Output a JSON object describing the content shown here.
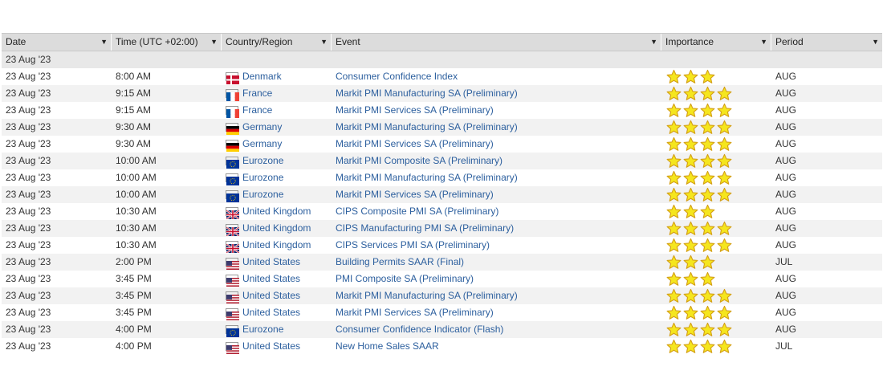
{
  "columns": [
    "Date",
    "Time (UTC +02:00)",
    "Country/Region",
    "Event",
    "Importance",
    "Period"
  ],
  "group_label": "23 Aug '23",
  "rows": [
    {
      "date": "23 Aug '23",
      "time": "8:00 AM",
      "country": "Denmark",
      "flag": "dk",
      "event": "Consumer Confidence Index",
      "stars": 3,
      "period": "AUG"
    },
    {
      "date": "23 Aug '23",
      "time": "9:15 AM",
      "country": "France",
      "flag": "fr",
      "event": "Markit PMI Manufacturing SA (Preliminary)",
      "stars": 4,
      "period": "AUG"
    },
    {
      "date": "23 Aug '23",
      "time": "9:15 AM",
      "country": "France",
      "flag": "fr",
      "event": "Markit PMI Services SA (Preliminary)",
      "stars": 4,
      "period": "AUG"
    },
    {
      "date": "23 Aug '23",
      "time": "9:30 AM",
      "country": "Germany",
      "flag": "de",
      "event": "Markit PMI Manufacturing SA (Preliminary)",
      "stars": 4,
      "period": "AUG"
    },
    {
      "date": "23 Aug '23",
      "time": "9:30 AM",
      "country": "Germany",
      "flag": "de",
      "event": "Markit PMI Services SA (Preliminary)",
      "stars": 4,
      "period": "AUG"
    },
    {
      "date": "23 Aug '23",
      "time": "10:00 AM",
      "country": "Eurozone",
      "flag": "eu",
      "event": "Markit PMI Composite SA (Preliminary)",
      "stars": 4,
      "period": "AUG"
    },
    {
      "date": "23 Aug '23",
      "time": "10:00 AM",
      "country": "Eurozone",
      "flag": "eu",
      "event": "Markit PMI Manufacturing SA (Preliminary)",
      "stars": 4,
      "period": "AUG"
    },
    {
      "date": "23 Aug '23",
      "time": "10:00 AM",
      "country": "Eurozone",
      "flag": "eu",
      "event": "Markit PMI Services SA (Preliminary)",
      "stars": 4,
      "period": "AUG"
    },
    {
      "date": "23 Aug '23",
      "time": "10:30 AM",
      "country": "United Kingdom",
      "flag": "uk",
      "event": "CIPS Composite PMI SA (Preliminary)",
      "stars": 3,
      "period": "AUG"
    },
    {
      "date": "23 Aug '23",
      "time": "10:30 AM",
      "country": "United Kingdom",
      "flag": "uk",
      "event": "CIPS Manufacturing PMI SA (Preliminary)",
      "stars": 4,
      "period": "AUG"
    },
    {
      "date": "23 Aug '23",
      "time": "10:30 AM",
      "country": "United Kingdom",
      "flag": "uk",
      "event": "CIPS Services PMI SA (Preliminary)",
      "stars": 4,
      "period": "AUG"
    },
    {
      "date": "23 Aug '23",
      "time": "2:00 PM",
      "country": "United States",
      "flag": "us",
      "event": "Building Permits SAAR (Final)",
      "stars": 3,
      "period": "JUL"
    },
    {
      "date": "23 Aug '23",
      "time": "3:45 PM",
      "country": "United States",
      "flag": "us",
      "event": "PMI Composite SA (Preliminary)",
      "stars": 3,
      "period": "AUG"
    },
    {
      "date": "23 Aug '23",
      "time": "3:45 PM",
      "country": "United States",
      "flag": "us",
      "event": "Markit PMI Manufacturing SA (Preliminary)",
      "stars": 4,
      "period": "AUG"
    },
    {
      "date": "23 Aug '23",
      "time": "3:45 PM",
      "country": "United States",
      "flag": "us",
      "event": "Markit PMI Services SA (Preliminary)",
      "stars": 4,
      "period": "AUG"
    },
    {
      "date": "23 Aug '23",
      "time": "4:00 PM",
      "country": "Eurozone",
      "flag": "eu",
      "event": "Consumer Confidence Indicator (Flash)",
      "stars": 4,
      "period": "AUG"
    },
    {
      "date": "23 Aug '23",
      "time": "4:00 PM",
      "country": "United States",
      "flag": "us",
      "event": "New Home Sales SAAR",
      "stars": 4,
      "period": "JUL"
    }
  ],
  "colors": {
    "link": "#2c5f9e",
    "header_bg": "#dcdcdc",
    "group_bg": "#e8e8e8",
    "alt_row_bg": "#f2f2f2",
    "star_fill": "#f5e61e",
    "star_stroke": "#d4a017"
  }
}
